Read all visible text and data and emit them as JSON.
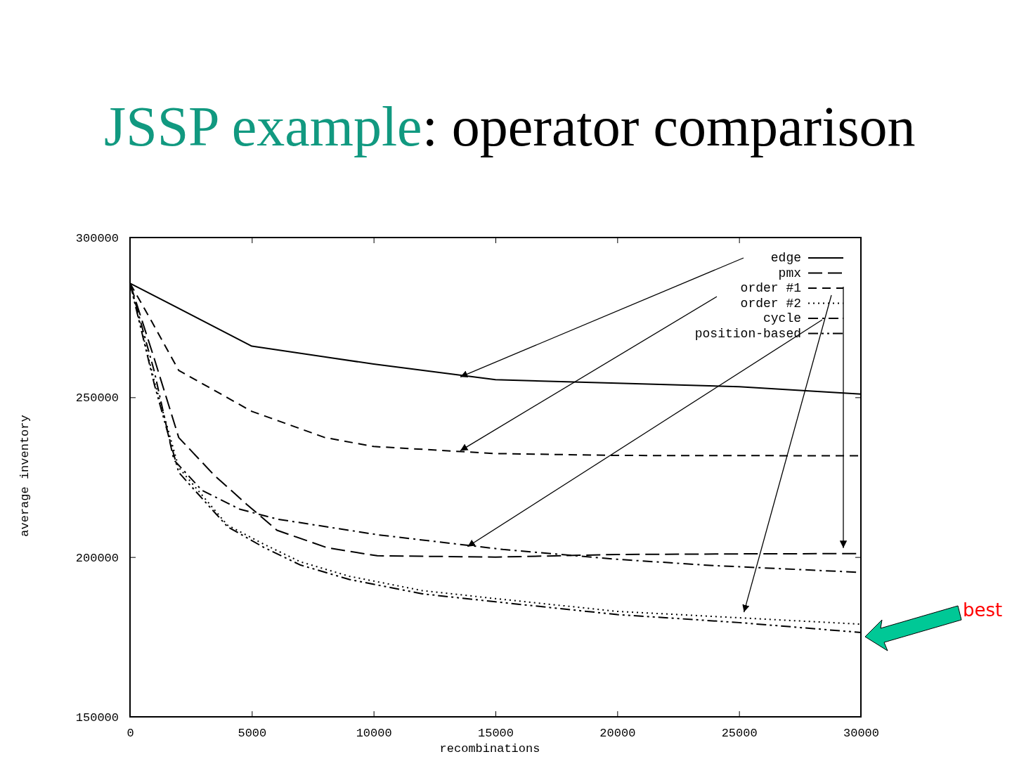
{
  "chart_data": {
    "type": "line",
    "title": "JSSP example: operator comparison",
    "xlabel": "recombinations",
    "ylabel": "average inventory",
    "xlim": [
      0,
      30000
    ],
    "xticks": [
      0,
      5000,
      10000,
      15000,
      20000,
      25000,
      30000
    ],
    "ylim": [
      150000,
      300000
    ],
    "yticks": [
      150000,
      200000,
      250000,
      300000
    ],
    "legend": "top right",
    "marker": "none",
    "series": [
      {
        "name": "edge",
        "color": "#000000",
        "line_style": "solid",
        "x": [
          0,
          5000,
          10000,
          15000,
          20000,
          25000,
          30000
        ],
        "values": [
          285700,
          266000,
          260400,
          255500,
          254400,
          253300,
          251000
        ]
      },
      {
        "name": "pmx",
        "color": "#000000",
        "line_style": "dashed",
        "x": [
          0,
          1000,
          2000,
          3460,
          4790,
          6030,
          8100,
          10150,
          15000,
          20000,
          25000,
          30000
        ],
        "values": [
          285700,
          262000,
          237400,
          225600,
          216500,
          208400,
          202900,
          200400,
          200000,
          200800,
          201000,
          201100
        ]
      },
      {
        "name": "order #1",
        "color": "#000000",
        "line_style": "dashed",
        "x": [
          0,
          900,
          2000,
          5000,
          8000,
          10000,
          15000,
          20000,
          30000
        ],
        "values": [
          285700,
          273600,
          258400,
          245600,
          237400,
          234600,
          232400,
          231800,
          231700
        ]
      },
      {
        "name": "order #2",
        "color": "#000000",
        "line_style": "dotted",
        "x": [
          0,
          1000,
          2000,
          4000,
          5500,
          7000,
          9000,
          12000,
          15000,
          20000,
          25000,
          30000
        ],
        "values": [
          285700,
          255000,
          228000,
          210000,
          204000,
          198500,
          194000,
          189500,
          187000,
          183000,
          181000,
          179000
        ]
      },
      {
        "name": "cycle",
        "color": "#000000",
        "line_style": "dashdot",
        "x": [
          0,
          1000,
          1800,
          2950,
          4500,
          6030,
          10150,
          15300,
          20000,
          23800,
          30000
        ],
        "values": [
          285700,
          258000,
          230400,
          220900,
          215000,
          211900,
          207000,
          202400,
          199300,
          197400,
          195200
        ]
      },
      {
        "name": "position-based",
        "color": "#000000",
        "line_style": "dashdotdot",
        "x": [
          0,
          1000,
          2000,
          4000,
          5500,
          7000,
          9000,
          12000,
          15000,
          20000,
          25000,
          30000
        ],
        "values": [
          285700,
          254000,
          226500,
          209500,
          203000,
          197500,
          193000,
          188500,
          186000,
          182000,
          179500,
          176400
        ]
      }
    ],
    "annotations": [
      "best"
    ]
  }
}
